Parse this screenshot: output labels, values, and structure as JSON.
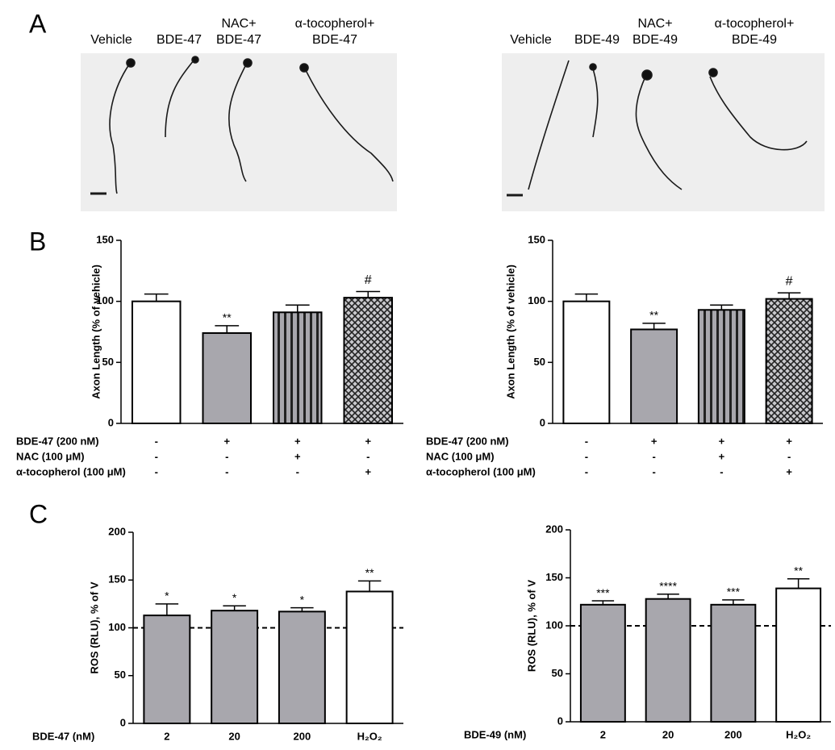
{
  "panel_labels": [
    "A",
    "B",
    "C"
  ],
  "micrographs": [
    {
      "labels": [
        [
          "Vehicle"
        ],
        [
          "BDE-47"
        ],
        [
          "NAC+",
          "BDE-47"
        ],
        [
          "α-tocopherol+",
          "BDE-47"
        ]
      ]
    },
    {
      "labels": [
        [
          "Vehicle"
        ],
        [
          "BDE-49"
        ],
        [
          "NAC+",
          "BDE-49"
        ],
        [
          "α-tocopherol+",
          "BDE-49"
        ]
      ]
    }
  ],
  "chart_data": [
    {
      "type": "bar",
      "ylabel": "Axon Length (% of vehicle)",
      "values": [
        100,
        74,
        91,
        103
      ],
      "errors": [
        6,
        6,
        6,
        5
      ],
      "significance": [
        null,
        "**",
        null,
        "#"
      ],
      "fills": [
        "#ffffff",
        "#a8a7ad",
        "stripes",
        "crosshatch"
      ],
      "ylim": [
        0,
        150
      ],
      "yticks": [
        0,
        50,
        100,
        150
      ],
      "treatments": [
        {
          "label": "BDE-47 (200 nM)",
          "marks": [
            "-",
            "+",
            "+",
            "+"
          ]
        },
        {
          "label": "NAC (100 μM)",
          "marks": [
            "-",
            "-",
            "+",
            "-"
          ]
        },
        {
          "label": "α-tocopherol (100 μM)",
          "marks": [
            "-",
            "-",
            "-",
            "+"
          ]
        }
      ]
    },
    {
      "type": "bar",
      "ylabel": "Axon Length (% of vehicle)",
      "values": [
        100,
        77,
        93,
        102
      ],
      "errors": [
        6,
        5,
        4,
        5
      ],
      "significance": [
        null,
        "**",
        null,
        "#"
      ],
      "fills": [
        "#ffffff",
        "#a8a7ad",
        "stripes",
        "crosshatch"
      ],
      "ylim": [
        0,
        150
      ],
      "yticks": [
        0,
        50,
        100,
        150
      ],
      "treatments": [
        {
          "label": "BDE-47 (200 nM)",
          "marks": [
            "-",
            "+",
            "+",
            "+"
          ]
        },
        {
          "label": "NAC (100 μM)",
          "marks": [
            "-",
            "-",
            "+",
            "-"
          ]
        },
        {
          "label": "α-tocopherol (100 μM)",
          "marks": [
            "-",
            "-",
            "-",
            "+"
          ]
        }
      ]
    },
    {
      "type": "bar",
      "ylabel": "ROS (RLU), % of V",
      "xlabel": "BDE-47 (nM)",
      "categories": [
        "2",
        "20",
        "200",
        "H₂O₂"
      ],
      "values": [
        113,
        118,
        117,
        138
      ],
      "errors": [
        12,
        5,
        4,
        11
      ],
      "significance": [
        "*",
        "*",
        "*",
        "**"
      ],
      "fills": [
        "#a8a7ad",
        "#a8a7ad",
        "#a8a7ad",
        "#ffffff"
      ],
      "ylim": [
        0,
        200
      ],
      "yticks": [
        0,
        50,
        100,
        150,
        200
      ],
      "reference_line": 100
    },
    {
      "type": "bar",
      "ylabel": "ROS (RLU), % of V",
      "xlabel": "BDE-49 (nM)",
      "categories": [
        "2",
        "20",
        "200",
        "H₂O₂"
      ],
      "values": [
        122,
        128,
        122,
        139
      ],
      "errors": [
        4,
        5,
        5,
        10
      ],
      "significance": [
        "***",
        "****",
        "***",
        "**"
      ],
      "fills": [
        "#a8a7ad",
        "#a8a7ad",
        "#a8a7ad",
        "#ffffff"
      ],
      "ylim": [
        0,
        200
      ],
      "yticks": [
        0,
        50,
        100,
        150,
        200
      ],
      "reference_line": 100
    }
  ]
}
